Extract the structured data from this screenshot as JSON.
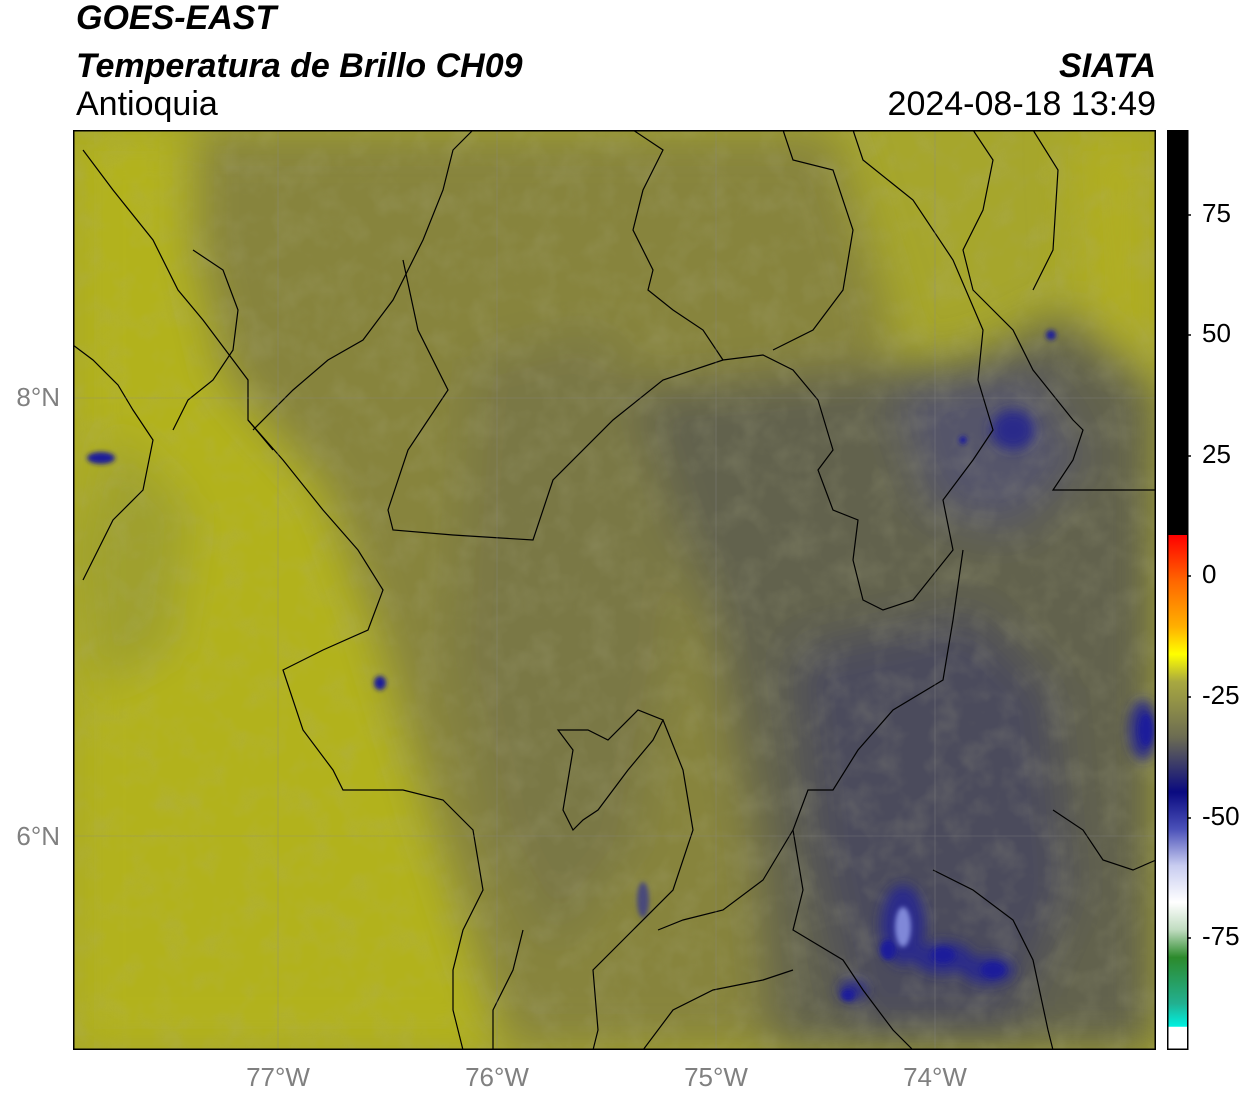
{
  "header": {
    "satellite": "GOES-EAST",
    "product": "Temperatura de Brillo CH09",
    "region": "Antioquia",
    "organization": "SIATA",
    "timestamp": "2024-08-18 13:49"
  },
  "map": {
    "lat_ticks": [
      {
        "value": 8,
        "label": "8°N"
      },
      {
        "value": 6,
        "label": "6°N"
      }
    ],
    "lon_ticks": [
      {
        "value": -77,
        "label": "77°W"
      },
      {
        "value": -76,
        "label": "76°W"
      },
      {
        "value": -75,
        "label": "75°W"
      },
      {
        "value": -74,
        "label": "74°W"
      }
    ],
    "lon_range": [
      -77.94,
      -73.0
    ],
    "lat_range": [
      4.95,
      9.2
    ],
    "grid": true
  },
  "colorbar": {
    "range": [
      -93,
      91
    ],
    "ticks": [
      {
        "value": 75,
        "label": "75"
      },
      {
        "value": 50,
        "label": "50"
      },
      {
        "value": 25,
        "label": "25"
      },
      {
        "value": 0,
        "label": "0"
      },
      {
        "value": -25,
        "label": "-25"
      },
      {
        "value": -50,
        "label": "-50"
      },
      {
        "value": -75,
        "label": "-75"
      }
    ],
    "colors": {
      "warm_black": "#000000",
      "red": "#ff2200",
      "orange": "#ff9900",
      "yellow": "#ffff00",
      "olive": "#6b6b45",
      "dark_blue": "#0b0b7a",
      "light_blue": "#aab0e8",
      "white": "#ffffff",
      "green": "#2c8a2c",
      "cyan": "#00e5dd"
    }
  }
}
